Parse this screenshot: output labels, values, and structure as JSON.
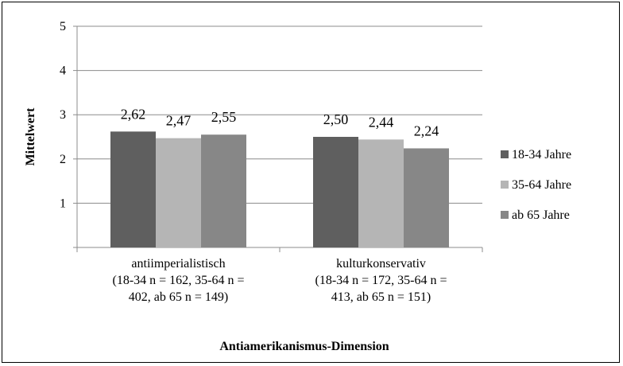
{
  "chart_data": {
    "type": "bar",
    "categories": [
      [
        "antiimperialistisch",
        "(18-34 n = 162, 35-64 n =",
        "402, ab 65 n = 149)"
      ],
      [
        "kulturkonservativ",
        "(18-34 n = 172, 35-64 n =",
        "413, ab 65 n = 151)"
      ]
    ],
    "series": [
      {
        "name": "18-34 Jahre",
        "values": [
          2.62,
          2.5
        ],
        "labels": [
          "2,62",
          "2,50"
        ],
        "color": "#5f5f5f"
      },
      {
        "name": "35-64 Jahre",
        "values": [
          2.47,
          2.44
        ],
        "labels": [
          "2,47",
          "2,44"
        ],
        "color": "#b5b5b5"
      },
      {
        "name": "ab 65 Jahre",
        "values": [
          2.55,
          2.24
        ],
        "labels": [
          "2,55",
          "2,24"
        ],
        "color": "#878787"
      }
    ],
    "xlabel": "Antiamerikanismus-Dimension",
    "ylabel": "Mittelwert",
    "ylim": [
      0,
      5
    ],
    "yticks": [
      "",
      "1",
      "2",
      "3",
      "4",
      "5"
    ],
    "grid": true,
    "legend": "right"
  }
}
